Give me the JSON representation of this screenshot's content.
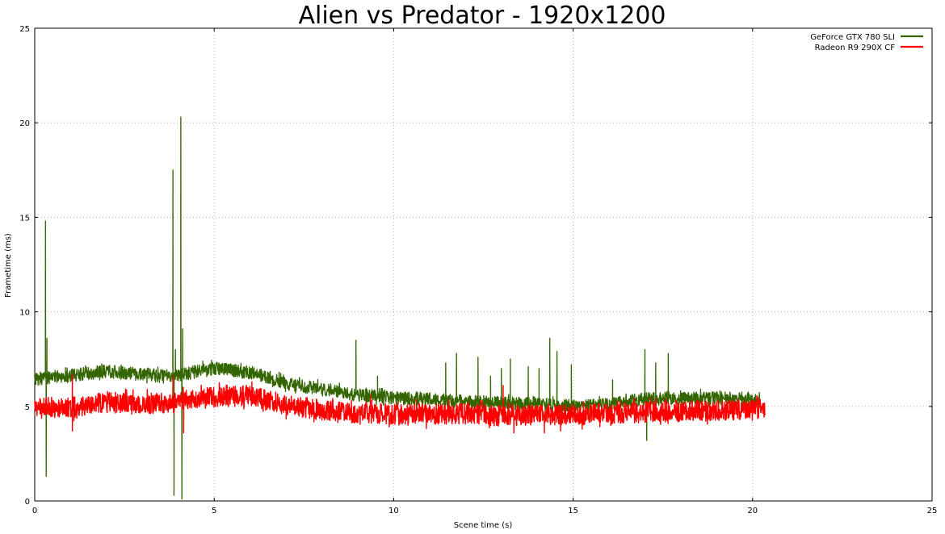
{
  "chart_data": {
    "type": "line",
    "title": "Alien vs Predator - 1920x1200",
    "xlabel": "Scene time (s)",
    "ylabel": "Frametime (ms)",
    "xlim": [
      0,
      25
    ],
    "ylim": [
      0,
      25
    ],
    "xticks": [
      "0",
      "5",
      "10",
      "15",
      "20",
      "25"
    ],
    "yticks": [
      "0",
      "5",
      "10",
      "15",
      "20",
      "25"
    ],
    "grid": true,
    "legend_position": "top-right",
    "series": [
      {
        "name": "GeForce GTX 780 SLI",
        "color": "#336600",
        "baseline": [
          [
            0.0,
            6.45
          ],
          [
            0.5,
            6.55
          ],
          [
            1.0,
            6.65
          ],
          [
            1.5,
            6.75
          ],
          [
            2.0,
            6.85
          ],
          [
            2.5,
            6.75
          ],
          [
            3.0,
            6.75
          ],
          [
            3.5,
            6.6
          ],
          [
            4.0,
            6.6
          ],
          [
            4.5,
            6.85
          ],
          [
            5.0,
            7.0
          ],
          [
            5.5,
            6.9
          ],
          [
            6.0,
            6.8
          ],
          [
            6.5,
            6.55
          ],
          [
            7.0,
            6.2
          ],
          [
            8.0,
            5.9
          ],
          [
            9.0,
            5.6
          ],
          [
            10.0,
            5.45
          ],
          [
            11.0,
            5.35
          ],
          [
            12.0,
            5.25
          ],
          [
            13.0,
            5.2
          ],
          [
            14.0,
            5.1
          ],
          [
            15.0,
            5.0
          ],
          [
            16.0,
            5.1
          ],
          [
            17.0,
            5.4
          ],
          [
            18.0,
            5.4
          ],
          [
            19.0,
            5.45
          ],
          [
            20.0,
            5.4
          ],
          [
            20.2,
            5.3
          ]
        ],
        "noise": 0.35,
        "spikes": [
          [
            0.3,
            14.8
          ],
          [
            0.32,
            1.3
          ],
          [
            0.34,
            8.6
          ],
          [
            3.85,
            17.5
          ],
          [
            3.88,
            0.3
          ],
          [
            3.92,
            8.0
          ],
          [
            4.07,
            20.3
          ],
          [
            4.1,
            0.1
          ],
          [
            4.12,
            9.1
          ],
          [
            8.95,
            8.5
          ],
          [
            9.55,
            6.6
          ],
          [
            11.45,
            7.3
          ],
          [
            11.75,
            7.8
          ],
          [
            12.35,
            7.6
          ],
          [
            12.7,
            6.6
          ],
          [
            13.0,
            7.0
          ],
          [
            13.25,
            7.5
          ],
          [
            13.75,
            7.1
          ],
          [
            14.05,
            7.0
          ],
          [
            14.35,
            8.6
          ],
          [
            14.55,
            7.9
          ],
          [
            14.95,
            7.2
          ],
          [
            16.1,
            6.4
          ],
          [
            17.0,
            8.0
          ],
          [
            17.05,
            3.2
          ],
          [
            17.3,
            7.3
          ],
          [
            17.65,
            7.8
          ]
        ]
      },
      {
        "name": "Radeon R9 290X CF",
        "color": "#ff0000",
        "baseline": [
          [
            0.0,
            4.95
          ],
          [
            0.5,
            4.95
          ],
          [
            1.0,
            5.0
          ],
          [
            1.1,
            4.95
          ],
          [
            1.5,
            5.1
          ],
          [
            2.0,
            5.2
          ],
          [
            2.5,
            5.2
          ],
          [
            3.0,
            5.1
          ],
          [
            3.5,
            5.2
          ],
          [
            4.0,
            5.2
          ],
          [
            4.4,
            5.35
          ],
          [
            5.0,
            5.5
          ],
          [
            5.5,
            5.6
          ],
          [
            6.0,
            5.6
          ],
          [
            6.5,
            5.3
          ],
          [
            7.0,
            5.1
          ],
          [
            8.0,
            4.8
          ],
          [
            9.0,
            4.65
          ],
          [
            10.0,
            4.6
          ],
          [
            11.0,
            4.6
          ],
          [
            12.0,
            4.6
          ],
          [
            13.0,
            4.5
          ],
          [
            14.0,
            4.55
          ],
          [
            15.0,
            4.55
          ],
          [
            16.0,
            4.6
          ],
          [
            17.0,
            4.7
          ],
          [
            18.0,
            4.75
          ],
          [
            19.0,
            4.8
          ],
          [
            20.0,
            4.85
          ],
          [
            20.35,
            4.8
          ]
        ],
        "noise": 0.55,
        "spikes": [
          [
            1.05,
            6.7
          ],
          [
            1.05,
            3.7
          ],
          [
            3.85,
            6.6
          ],
          [
            4.15,
            3.6
          ],
          [
            6.05,
            6.3
          ],
          [
            9.35,
            5.6
          ],
          [
            13.05,
            6.1
          ],
          [
            13.35,
            3.6
          ],
          [
            14.2,
            3.6
          ],
          [
            14.65,
            3.7
          ],
          [
            15.25,
            3.8
          ],
          [
            17.6,
            5.4
          ]
        ]
      }
    ]
  }
}
